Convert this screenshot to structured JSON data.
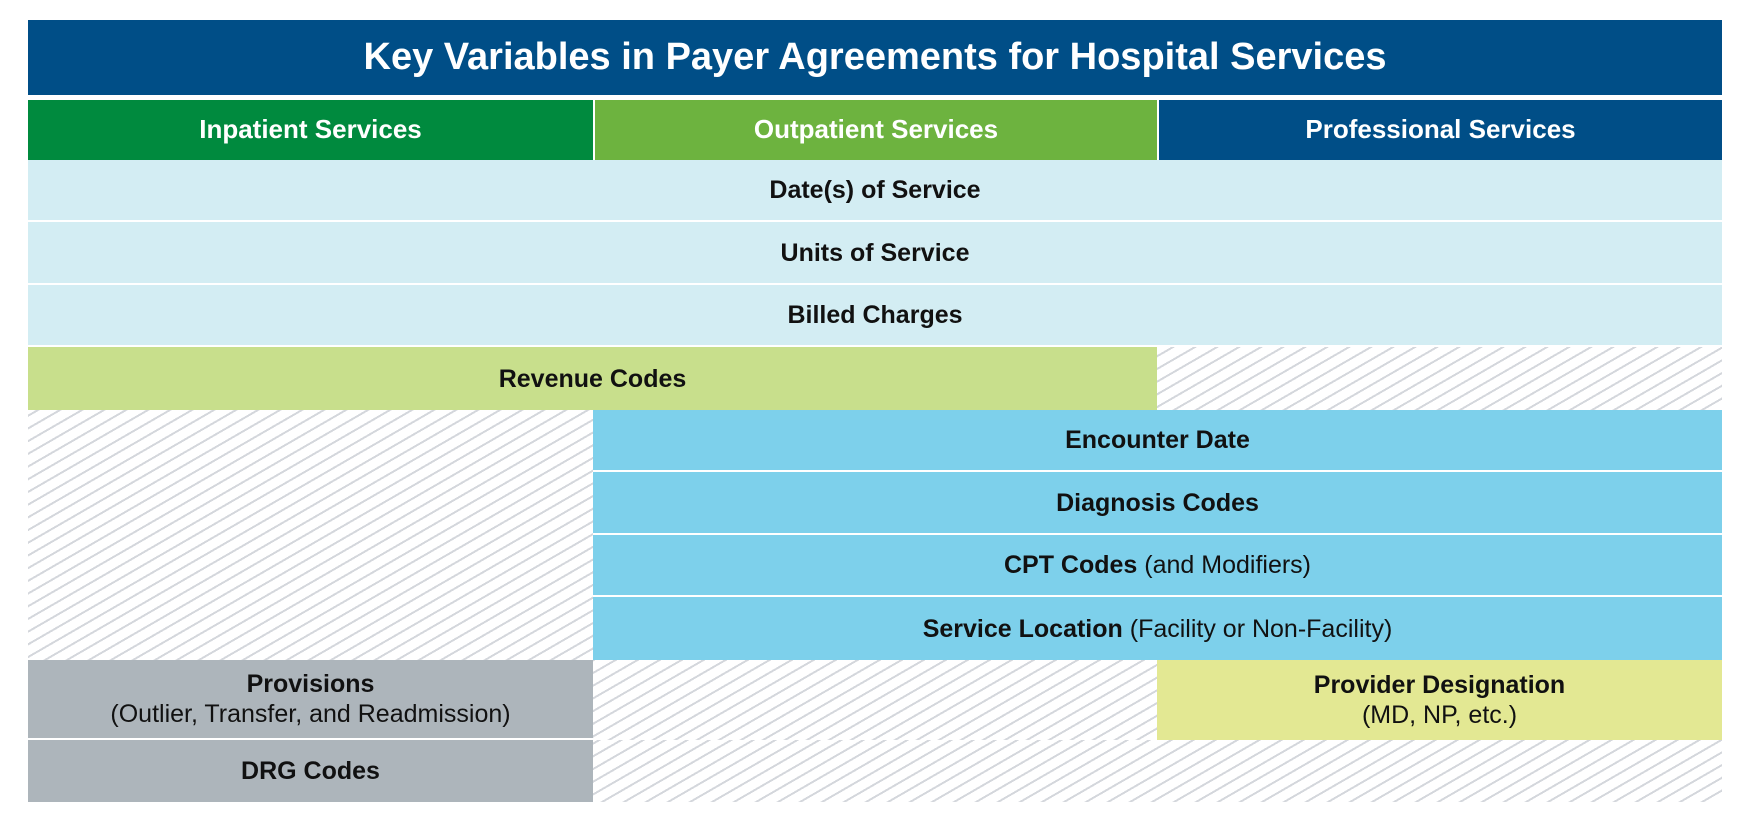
{
  "title": "Key Variables in Payer Agreements for Hospital Services",
  "columns": [
    "Inpatient Services",
    "Outpatient Services",
    "Professional Services"
  ],
  "rows": [
    {
      "label": "Date(s) of Service"
    },
    {
      "label": "Units of Service"
    },
    {
      "label": "Billed Charges"
    },
    {
      "label": "Revenue Codes"
    },
    {
      "label": "Encounter Date"
    },
    {
      "label": "Diagnosis Codes"
    },
    {
      "label": "CPT Codes",
      "note": "(and Modifiers)"
    },
    {
      "label": "Service Location",
      "note": "(Facility or Non-Facility)"
    },
    {
      "label": "Provisions",
      "note": "(Outlier, Transfer, and Readmission)"
    },
    {
      "label": "Provider Designation",
      "note": "(MD, NP, etc.)"
    },
    {
      "label": "DRG Codes"
    }
  ]
}
